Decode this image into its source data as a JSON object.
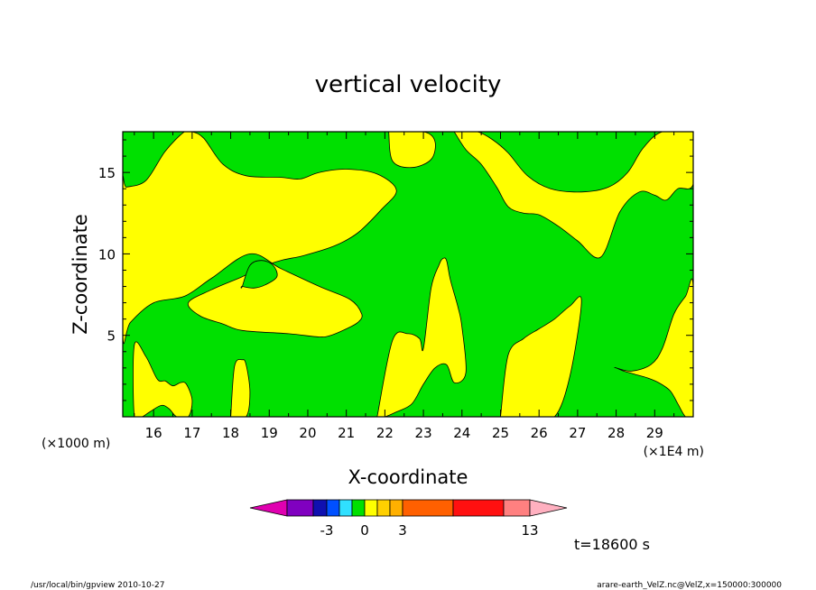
{
  "chart_data": {
    "type": "heatmap",
    "title": "vertical velocity",
    "xlabel": "X-coordinate",
    "ylabel": "Z-coordinate",
    "x_unit_note": "(×1E4 m)",
    "y_unit_note": "(×1000 m)",
    "xlim": [
      15.2,
      30.0
    ],
    "ylim": [
      0.0,
      17.5
    ],
    "x_ticks": [
      16,
      17,
      18,
      19,
      20,
      21,
      22,
      23,
      24,
      25,
      26,
      27,
      28,
      29
    ],
    "y_ticks": [
      5,
      10,
      15
    ],
    "time_label": "t=18600 s",
    "fill_colors": {
      "negative": "#00e000",
      "positive": "#ffff00"
    },
    "regions_positive": [
      {
        "name": "upper-left-band",
        "x": [
          15.2,
          15.4,
          16.0,
          16.8,
          17.5,
          18.5,
          19.3,
          20.3,
          21.1,
          21.4,
          21.3,
          21.0,
          20.6,
          20.3,
          19.5,
          18.3,
          17.8,
          17.2,
          16.9,
          17.5,
          18.3,
          18.8,
          19.3,
          19.9,
          20.7,
          21.3,
          21.9,
          22.3,
          21.8,
          21.0,
          20.3,
          19.8,
          19.3,
          18.4,
          17.8,
          17.3,
          17.0,
          16.8,
          16.3,
          15.8,
          15.3,
          15.2
        ],
        "y": [
          5.0,
          5.8,
          7.0,
          7.4,
          8.5,
          10.0,
          9.1,
          8.0,
          7.2,
          6.3,
          5.8,
          5.4,
          5.0,
          4.9,
          5.1,
          5.3,
          5.7,
          6.2,
          7.0,
          7.8,
          8.6,
          9.2,
          9.6,
          9.9,
          10.5,
          11.3,
          12.7,
          13.9,
          14.9,
          15.2,
          15.0,
          14.6,
          14.7,
          14.8,
          15.5,
          17.1,
          17.5,
          17.5,
          16.3,
          14.5,
          14.1,
          14.1
        ]
      },
      {
        "name": "lower-left-lobe",
        "x": [
          15.5,
          15.8,
          16.1,
          16.3,
          16.5,
          16.7,
          16.85,
          17.0,
          16.9,
          16.6,
          16.4,
          16.2,
          15.9,
          15.7,
          15.5
        ],
        "y": [
          4.4,
          3.7,
          2.3,
          2.2,
          1.9,
          2.1,
          2.0,
          1.0,
          0.0,
          0.0,
          0.5,
          0.7,
          0.3,
          0.0,
          0.0
        ]
      },
      {
        "name": "lower-slot",
        "x": [
          18.0,
          18.1,
          18.3,
          18.4,
          18.5,
          18.4,
          18.0
        ],
        "y": [
          0.0,
          3.1,
          3.5,
          3.2,
          1.5,
          0.0,
          0.0
        ]
      },
      {
        "name": "central-column",
        "x": [
          21.8,
          22.2,
          22.6,
          22.9,
          23.0,
          23.2,
          23.4,
          23.5,
          23.6,
          23.7,
          23.9,
          24.0,
          24.1,
          23.8,
          23.6,
          23.3,
          23.0,
          22.7,
          22.3,
          22.0,
          21.8
        ],
        "y": [
          0.0,
          4.7,
          5.1,
          4.8,
          4.2,
          7.9,
          9.3,
          9.7,
          9.6,
          8.4,
          6.7,
          5.5,
          2.7,
          2.1,
          3.2,
          3.0,
          2.0,
          0.8,
          0.3,
          0.0,
          0.0
        ]
      },
      {
        "name": "upper-center-pocket",
        "x": [
          22.1,
          22.2,
          22.7,
          23.2,
          23.3,
          23.0,
          22.1
        ],
        "y": [
          17.5,
          15.7,
          15.3,
          15.8,
          16.9,
          17.5,
          17.5
        ]
      },
      {
        "name": "upper-right-band",
        "x": [
          23.8,
          24.1,
          24.5,
          24.9,
          25.2,
          25.6,
          26.0,
          26.5,
          27.0,
          27.6,
          28.1,
          28.6,
          29.0,
          29.3,
          29.6,
          30.0,
          30.0,
          29.2,
          28.7,
          28.3,
          27.8,
          27.1,
          26.3,
          25.7,
          25.2,
          24.8,
          24.4,
          24.0,
          23.8
        ],
        "y": [
          17.5,
          16.4,
          15.5,
          14.1,
          12.9,
          12.5,
          12.4,
          11.7,
          10.8,
          9.8,
          12.6,
          13.8,
          13.6,
          13.3,
          14.0,
          14.3,
          17.5,
          17.5,
          16.5,
          15.0,
          14.1,
          13.8,
          14.0,
          14.8,
          16.2,
          17.0,
          17.5,
          17.5,
          17.5
        ]
      },
      {
        "name": "lower-right-lobe",
        "x": [
          25.0,
          25.2,
          25.6,
          26.0,
          26.4,
          26.8,
          27.1,
          26.8,
          26.4,
          25.8,
          25.0
        ],
        "y": [
          0.0,
          3.8,
          4.8,
          5.4,
          6.0,
          6.8,
          7.1,
          2.5,
          0.0,
          0.0,
          0.0
        ]
      },
      {
        "name": "right-edge",
        "x": [
          28.0,
          28.4,
          28.9,
          29.2,
          29.5,
          29.8,
          30.0,
          30.0,
          29.8,
          29.6,
          29.4,
          29.1,
          28.8,
          28.5,
          28.2,
          28.0
        ],
        "y": [
          3.0,
          2.8,
          3.2,
          4.2,
          6.3,
          7.4,
          8.0,
          0.0,
          0.0,
          0.8,
          1.6,
          2.1,
          2.4,
          2.6,
          2.8,
          3.0
        ]
      }
    ],
    "regions_negative": [
      {
        "name": "small-island",
        "x": [
          18.3,
          18.5,
          18.8,
          19.1,
          19.2,
          18.9,
          18.6,
          18.3
        ],
        "y": [
          8.0,
          9.3,
          9.6,
          9.3,
          8.6,
          8.1,
          7.9,
          8.0
        ]
      }
    ],
    "colorbar": {
      "type": "discrete-triangular-ends",
      "colors": [
        "#e000b0",
        "#8000c0",
        "#1010b0",
        "#0050ff",
        "#30e0ff",
        "#00e000",
        "#ffff00",
        "#ffd000",
        "#ffb000",
        "#ff6000",
        "#ff1010",
        "#ff8080",
        "#ffb0c0"
      ],
      "tick_labels": [
        "-3",
        "0",
        "3",
        "13"
      ]
    }
  },
  "footer": {
    "left": "/usr/local/bin/gpview   2010-10-27",
    "right": "arare-earth_VelZ.nc@VelZ,x=150000:300000"
  }
}
